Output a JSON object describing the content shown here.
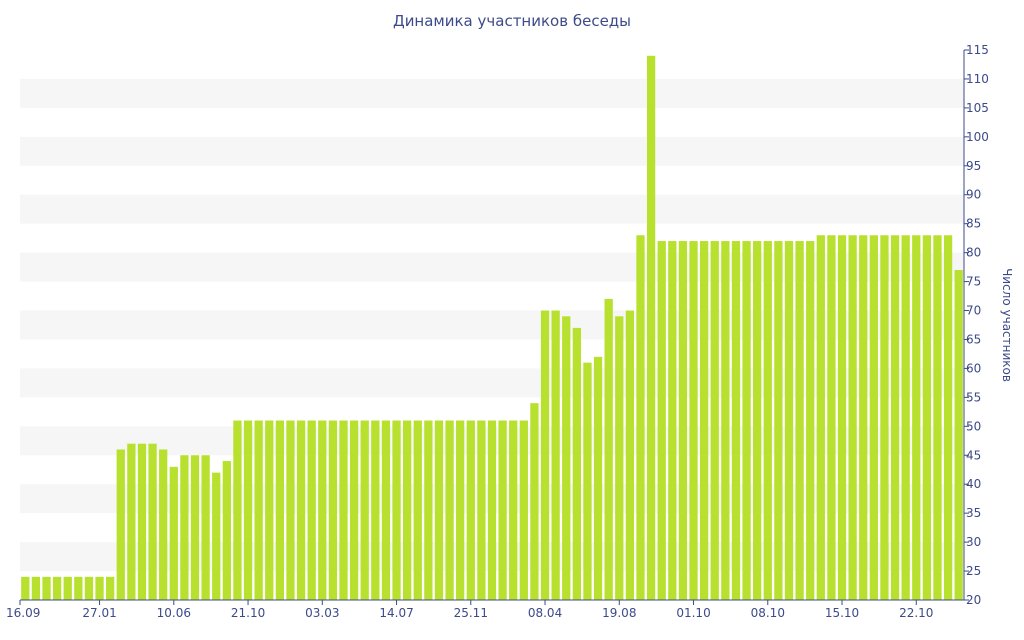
{
  "chart_data": {
    "type": "bar",
    "title": "Динамика участников беседы",
    "xlabel": "",
    "ylabel": "Число участников",
    "ylim": [
      20,
      115
    ],
    "yticks": [
      20,
      25,
      30,
      35,
      40,
      45,
      50,
      55,
      60,
      65,
      70,
      75,
      80,
      85,
      90,
      95,
      100,
      105,
      110,
      115
    ],
    "x_tick_labels": [
      "16.09",
      "27.01",
      "10.06",
      "21.10",
      "03.03",
      "14.07",
      "25.11",
      "08.04",
      "19.08",
      "01.10",
      "08.10",
      "15.10",
      "22.10"
    ],
    "x_tick_bar_index": [
      0,
      7,
      14,
      21,
      28,
      35,
      42,
      49,
      56,
      63,
      70,
      77,
      84
    ],
    "y_axis_side": "right",
    "grid": "horizontal alternating bands",
    "bar_color": "#b8e02e",
    "values": [
      24,
      24,
      24,
      24,
      24,
      24,
      24,
      24,
      24,
      46,
      47,
      47,
      47,
      46,
      43,
      45,
      45,
      45,
      42,
      44,
      51,
      51,
      51,
      51,
      51,
      51,
      51,
      51,
      51,
      51,
      51,
      51,
      51,
      51,
      51,
      51,
      51,
      51,
      51,
      51,
      51,
      51,
      51,
      51,
      51,
      51,
      51,
      51,
      54,
      70,
      70,
      69,
      67,
      61,
      62,
      72,
      69,
      70,
      83,
      114,
      82,
      82,
      82,
      82,
      82,
      82,
      82,
      82,
      82,
      82,
      82,
      82,
      82,
      82,
      82,
      83,
      83,
      83,
      83,
      83,
      83,
      83,
      83,
      83,
      83,
      83,
      83,
      83,
      77
    ]
  }
}
